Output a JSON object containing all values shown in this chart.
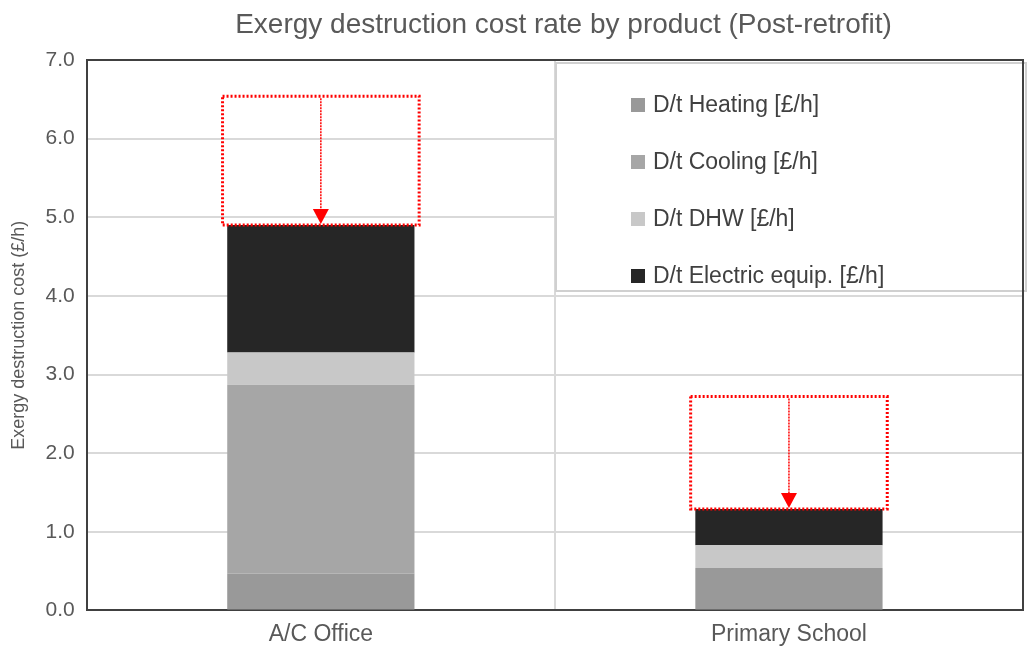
{
  "chart_data": {
    "type": "bar",
    "title": "Exergy destruction cost rate by product (Post-retrofit)",
    "ylabel": "Exergy destruction cost (£/h)",
    "categories": [
      "A/C Office",
      "Primary School"
    ],
    "stacked": true,
    "ylim": [
      0,
      7
    ],
    "yticks": [
      {
        "value": 0,
        "label": "0.0"
      },
      {
        "value": 1,
        "label": "1.0"
      },
      {
        "value": 2,
        "label": "2.0"
      },
      {
        "value": 3,
        "label": "3.0"
      },
      {
        "value": 4,
        "label": "4.0"
      },
      {
        "value": 5,
        "label": "5.0"
      },
      {
        "value": 6,
        "label": "6.0"
      },
      {
        "value": 7,
        "label": "7.0"
      }
    ],
    "grid": true,
    "legend": "top right",
    "series": [
      {
        "name": "D/t Heating [£/h]",
        "color": "#999999",
        "values": [
          0.47,
          0.54
        ]
      },
      {
        "name": "D/t Cooling [£/h]",
        "color": "#a6a6a6",
        "values": [
          2.4,
          0
        ]
      },
      {
        "name": "D/t DHW [£/h]",
        "color": "#c8c8c8",
        "values": [
          0.41,
          0.29
        ]
      },
      {
        "name": "D/t Electric equip. [£/h]",
        "color": "#262626",
        "values": [
          1.62,
          0.46
        ]
      },
      {
        "type": "bar",
        "color": "#ff0000",
        "line_style": "dotted",
        "base": [
          4.9,
          1.29
        ],
        "values": [
          1.64,
          1.43
        ]
      }
    ]
  }
}
